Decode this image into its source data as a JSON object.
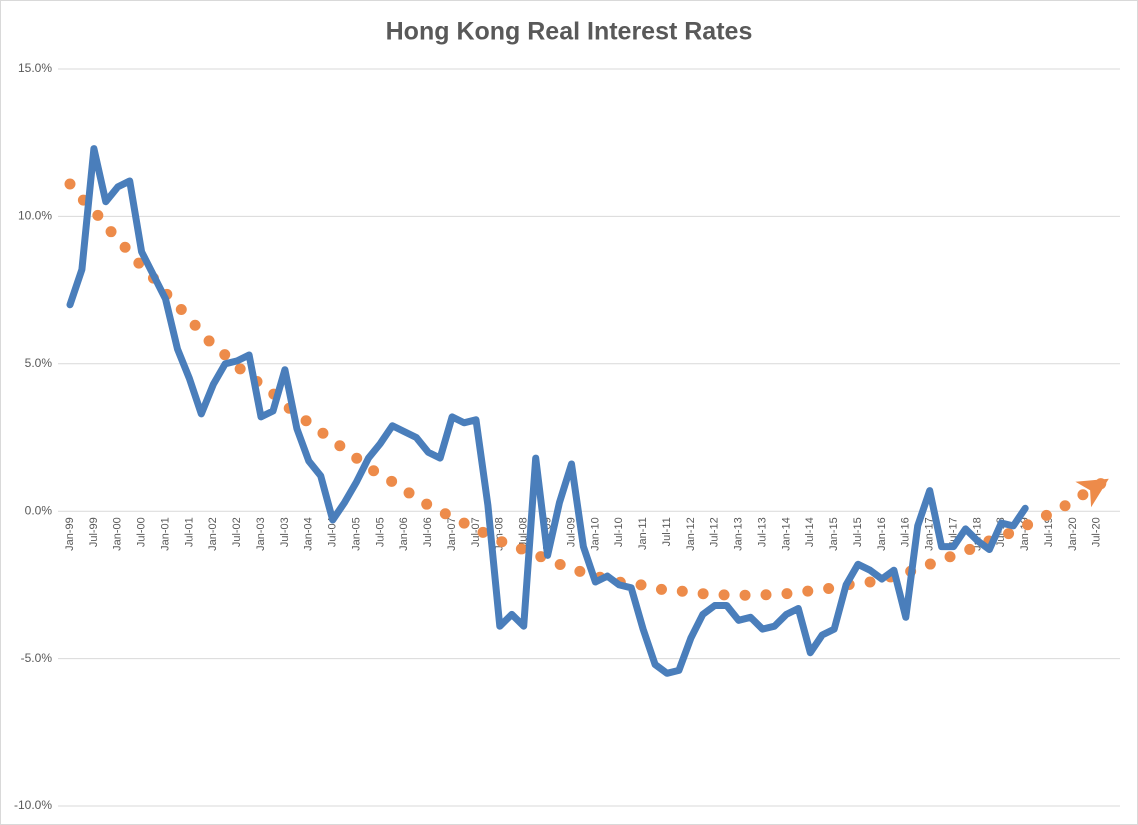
{
  "chart_data": {
    "type": "line",
    "title": "Hong Kong Real Interest Rates",
    "categories": [
      "Jan-99",
      null,
      "Jul-99",
      null,
      "Jan-00",
      null,
      "Jul-00",
      null,
      "Jan-01",
      null,
      "Jul-01",
      null,
      "Jan-02",
      null,
      "Jul-02",
      null,
      "Jan-03",
      null,
      "Jul-03",
      null,
      "Jan-04",
      null,
      "Jul-04",
      null,
      "Jan-05",
      null,
      "Jul-05",
      null,
      "Jan-06",
      null,
      "Jul-06",
      null,
      "Jan-07",
      null,
      "Jul-07",
      null,
      "Jan-08",
      null,
      "Jul-08",
      null,
      "Jan-09",
      null,
      "Jul-09",
      null,
      "Jan-10",
      null,
      "Jul-10",
      null,
      "Jan-11",
      null,
      "Jul-11",
      null,
      "Jan-12",
      null,
      "Jul-12",
      null,
      "Jan-13",
      null,
      "Jul-13",
      null,
      "Jan-14",
      null,
      "Jul-14",
      null,
      "Jan-15",
      null,
      "Jul-15",
      null,
      "Jan-16",
      null,
      "Jul-16",
      null,
      "Jan-17",
      null,
      "Jul-17",
      null,
      "Jan-18",
      null,
      "Jul-18",
      null,
      "Jan-19",
      null,
      "Jul-19",
      null,
      "Jan-20",
      null,
      "Jul-20",
      null
    ],
    "series": [
      {
        "color": "#4a7ebb",
        "line_style": "solid",
        "values": [
          7.0,
          8.2,
          12.3,
          10.5,
          11.0,
          11.2,
          8.8,
          8.0,
          7.2,
          5.5,
          4.5,
          3.3,
          4.3,
          5.0,
          5.1,
          5.3,
          3.2,
          3.4,
          4.8,
          2.8,
          1.7,
          1.2,
          -0.3,
          0.3,
          1.0,
          1.8,
          2.3,
          2.9,
          2.7,
          2.5,
          2.0,
          1.8,
          3.2,
          3.0,
          3.1,
          0.2,
          -3.9,
          -3.5,
          -3.9,
          1.8,
          -1.5,
          0.3,
          1.6,
          -1.2,
          -2.4,
          -2.2,
          -2.5,
          -2.6,
          -4.0,
          -5.2,
          -5.5,
          -5.4,
          -4.3,
          -3.5,
          -3.2,
          -3.2,
          -3.7,
          -3.6,
          -4.0,
          -3.9,
          -3.5,
          -3.3,
          -4.8,
          -4.2,
          -4.0,
          -2.5,
          -1.8,
          -2.0,
          -2.3,
          -2.0,
          -3.6,
          -0.5,
          0.7,
          -1.2,
          -1.2,
          -0.6,
          -1.0,
          -1.3,
          -0.4,
          -0.5,
          0.1,
          null,
          null,
          null,
          null,
          null,
          null,
          null
        ]
      },
      {
        "color": "#ed8b4a",
        "line_style": "dotted",
        "arrow_end": true,
        "values": [
          11.1,
          10.6,
          10.2,
          9.7,
          9.2,
          8.8,
          8.3,
          7.9,
          7.4,
          7.0,
          6.5,
          6.1,
          5.6,
          5.3,
          4.9,
          4.6,
          4.3,
          4.0,
          3.6,
          3.3,
          3.0,
          2.7,
          2.4,
          2.1,
          1.8,
          1.5,
          1.2,
          1.0,
          0.7,
          0.5,
          0.2,
          0.0,
          -0.2,
          -0.4,
          -0.6,
          -0.8,
          -1.0,
          -1.2,
          -1.3,
          -1.5,
          -1.6,
          -1.8,
          -1.9,
          -2.1,
          -2.2,
          -2.3,
          -2.4,
          -2.5,
          -2.5,
          -2.6,
          -2.7,
          -2.7,
          -2.75,
          -2.8,
          -2.8,
          -2.85,
          -2.85,
          -2.85,
          -2.85,
          -2.8,
          -2.8,
          -2.75,
          -2.7,
          -2.65,
          -2.6,
          -2.5,
          -2.45,
          -2.4,
          -2.3,
          -2.2,
          -2.1,
          -1.95,
          -1.8,
          -1.65,
          -1.5,
          -1.35,
          -1.2,
          -1.0,
          -0.85,
          -0.7,
          -0.5,
          -0.3,
          -0.1,
          0.1,
          0.35,
          0.6,
          0.85,
          1.1
        ]
      }
    ],
    "ylim": [
      -10,
      15
    ],
    "yticks": [
      {
        "value": -10,
        "label": "-10.0%"
      },
      {
        "value": -5,
        "label": "-5.0%"
      },
      {
        "value": 0,
        "label": "0.0%"
      },
      {
        "value": 5,
        "label": "5.0%"
      },
      {
        "value": 10,
        "label": "10.0%"
      },
      {
        "value": 15,
        "label": "15.0%"
      }
    ],
    "grid": true
  }
}
